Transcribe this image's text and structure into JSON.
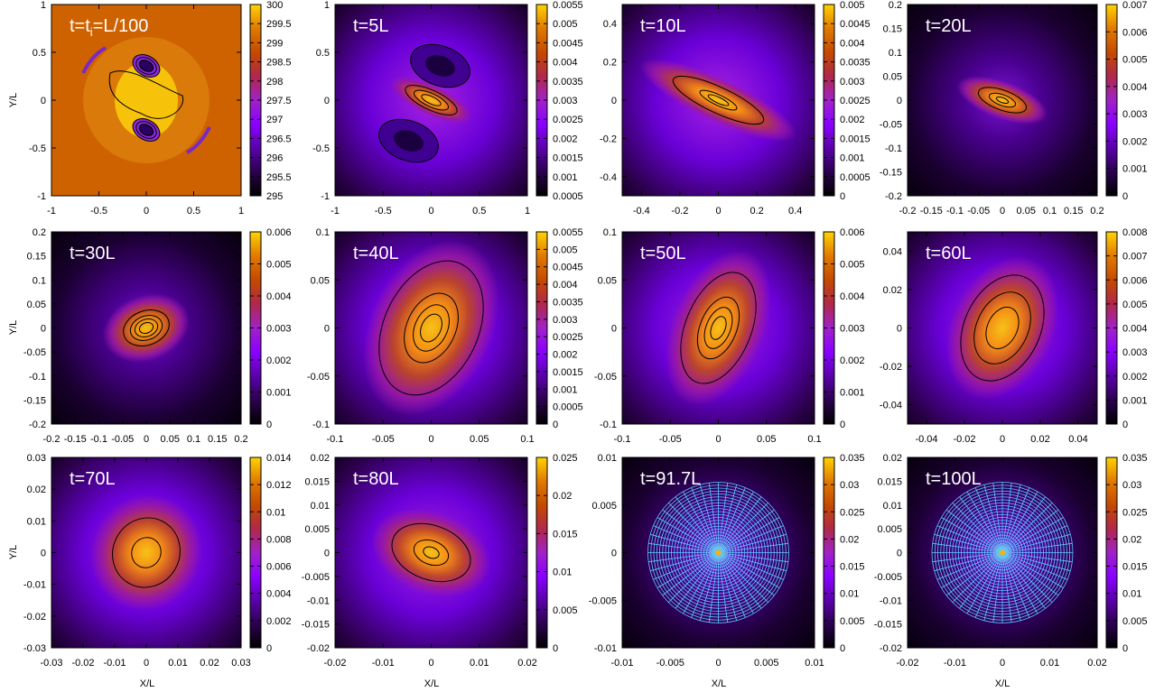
{
  "figure": {
    "x_axis_label": "X/L",
    "y_axis_label": "Y/L"
  },
  "colors": {
    "colormap": [
      "#000000",
      "#2b004f",
      "#5a00aa",
      "#8a00ff",
      "#a022c7",
      "#b0284a",
      "#c54a00",
      "#e07a00",
      "#ffd300"
    ],
    "contour": "#000000",
    "mesh": "#5ec8ff",
    "background_panel_1": "#cf6200",
    "label": "#ffffff"
  },
  "chart_data": [
    {
      "type": "heatmap",
      "title": "t=t_i=L/100",
      "title_main": "t=t",
      "title_sub": "i",
      "title_tail": "=L/100",
      "xlim": [
        -1,
        1
      ],
      "ylim": [
        -1,
        1
      ],
      "x_ticks": [
        "-1",
        "-0.5",
        "0",
        "0.5",
        "1"
      ],
      "y_ticks": [
        "1",
        "0.5",
        "0",
        "-0.5",
        "-1"
      ],
      "colorbar": {
        "min": 295,
        "max": 300,
        "ticks": [
          "300",
          "299.5",
          "299",
          "298.5",
          "298",
          "297.5",
          "297",
          "296.5",
          "296",
          "295.5",
          "295"
        ]
      },
      "mesh": false
    },
    {
      "type": "heatmap",
      "title": "t=5L",
      "xlim": [
        -1,
        1
      ],
      "ylim": [
        -1,
        1
      ],
      "x_ticks": [
        "-1",
        "-0.5",
        "0",
        "0.5",
        "1"
      ],
      "y_ticks": [
        "1",
        "0.5",
        "0",
        "-0.5",
        "-1"
      ],
      "colorbar": {
        "min": 0.0005,
        "max": 0.0055,
        "ticks": [
          "0.0055",
          "0.005",
          "0.0045",
          "0.004",
          "0.0035",
          "0.003",
          "0.0025",
          "0.002",
          "0.0015",
          "0.001",
          "0.0005"
        ]
      },
      "mesh": false
    },
    {
      "type": "heatmap",
      "title": "t=10L",
      "xlim": [
        -0.5,
        0.5
      ],
      "ylim": [
        -0.5,
        0.5
      ],
      "x_ticks": [
        "-0.4",
        "-0.2",
        "0",
        "0.2",
        "0.4"
      ],
      "y_ticks": [
        "0.4",
        "0.2",
        "0",
        "-0.2",
        "-0.4"
      ],
      "colorbar": {
        "min": 0,
        "max": 0.005,
        "ticks": [
          "0.005",
          "0.0045",
          "0.004",
          "0.0035",
          "0.003",
          "0.0025",
          "0.002",
          "0.0015",
          "0.001",
          "0.0005",
          "0"
        ]
      },
      "mesh": false
    },
    {
      "type": "heatmap",
      "title": "t=20L",
      "xlim": [
        -0.2,
        0.2
      ],
      "ylim": [
        -0.2,
        0.2
      ],
      "x_ticks": [
        "-0.2",
        "-0.15",
        "-0.1",
        "-0.05",
        "0",
        "0.05",
        "0.1",
        "0.15",
        "0.2"
      ],
      "y_ticks": [
        "0.2",
        "0.15",
        "0.1",
        "0.05",
        "0",
        "-0.05",
        "-0.1",
        "-0.15",
        "-0.2"
      ],
      "colorbar": {
        "min": 0,
        "max": 0.007,
        "ticks": [
          "0.007",
          "0.006",
          "0.005",
          "0.004",
          "0.003",
          "0.002",
          "0.001",
          "0"
        ]
      },
      "mesh": false
    },
    {
      "type": "heatmap",
      "title": "t=30L",
      "xlim": [
        -0.2,
        0.2
      ],
      "ylim": [
        -0.2,
        0.2
      ],
      "x_ticks": [
        "-0.2",
        "-0.15",
        "-0.1",
        "-0.05",
        "0",
        "0.05",
        "0.1",
        "0.15",
        "0.2"
      ],
      "y_ticks": [
        "0.2",
        "0.15",
        "0.1",
        "0.05",
        "0",
        "-0.05",
        "-0.1",
        "-0.15",
        "-0.2"
      ],
      "colorbar": {
        "min": 0,
        "max": 0.006,
        "ticks": [
          "0.006",
          "0.005",
          "0.004",
          "0.003",
          "0.002",
          "0.001",
          "0"
        ]
      },
      "mesh": false
    },
    {
      "type": "heatmap",
      "title": "t=40L",
      "xlim": [
        -0.1,
        0.1
      ],
      "ylim": [
        -0.1,
        0.1
      ],
      "x_ticks": [
        "-0.1",
        "-0.05",
        "0",
        "0.05",
        "0.1"
      ],
      "y_ticks": [
        "0.1",
        "0.05",
        "0",
        "-0.05",
        "-0.1"
      ],
      "colorbar": {
        "min": 0,
        "max": 0.0055,
        "ticks": [
          "0.0055",
          "0.005",
          "0.0045",
          "0.004",
          "0.0035",
          "0.003",
          "0.0025",
          "0.002",
          "0.0015",
          "0.001",
          "0.0005",
          "0"
        ]
      },
      "mesh": false
    },
    {
      "type": "heatmap",
      "title": "t=50L",
      "xlim": [
        -0.1,
        0.1
      ],
      "ylim": [
        -0.1,
        0.1
      ],
      "x_ticks": [
        "-0.1",
        "-0.05",
        "0",
        "0.05",
        "0.1"
      ],
      "y_ticks": [
        "0.1",
        "0.05",
        "0",
        "-0.05",
        "-0.1"
      ],
      "colorbar": {
        "min": 0,
        "max": 0.006,
        "ticks": [
          "0.006",
          "0.005",
          "0.004",
          "0.003",
          "0.002",
          "0.001",
          "0"
        ]
      },
      "mesh": false
    },
    {
      "type": "heatmap",
      "title": "t=60L",
      "xlim": [
        -0.05,
        0.05
      ],
      "ylim": [
        -0.05,
        0.05
      ],
      "x_ticks": [
        "-0.04",
        "-0.02",
        "0",
        "0.02",
        "0.04"
      ],
      "y_ticks": [
        "0.04",
        "0.02",
        "0",
        "-0.02",
        "-0.04"
      ],
      "colorbar": {
        "min": 0,
        "max": 0.008,
        "ticks": [
          "0.008",
          "0.007",
          "0.006",
          "0.005",
          "0.004",
          "0.003",
          "0.002",
          "0.001",
          "0"
        ]
      },
      "mesh": false
    },
    {
      "type": "heatmap",
      "title": "t=70L",
      "xlim": [
        -0.03,
        0.03
      ],
      "ylim": [
        -0.03,
        0.03
      ],
      "x_ticks": [
        "-0.03",
        "-0.02",
        "-0.01",
        "0",
        "0.01",
        "0.02",
        "0.03"
      ],
      "y_ticks": [
        "0.03",
        "0.02",
        "0.01",
        "0",
        "-0.01",
        "-0.02",
        "-0.03"
      ],
      "colorbar": {
        "min": 0,
        "max": 0.014,
        "ticks": [
          "0.014",
          "0.012",
          "0.01",
          "0.008",
          "0.006",
          "0.004",
          "0.002",
          "0"
        ]
      },
      "mesh": false
    },
    {
      "type": "heatmap",
      "title": "t=80L",
      "xlim": [
        -0.02,
        0.02
      ],
      "ylim": [
        -0.02,
        0.02
      ],
      "x_ticks": [
        "-0.02",
        "-0.01",
        "0",
        "0.01",
        "0.02"
      ],
      "y_ticks": [
        "0.02",
        "0.015",
        "0.01",
        "0.005",
        "0",
        "-0.005",
        "-0.01",
        "-0.015",
        "-0.02"
      ],
      "colorbar": {
        "min": 0,
        "max": 0.025,
        "ticks": [
          "0.025",
          "0.02",
          "0.015",
          "0.01",
          "0.005",
          "0"
        ]
      },
      "mesh": false
    },
    {
      "type": "heatmap",
      "title": "t=91.7L",
      "xlim": [
        -0.01,
        0.01
      ],
      "ylim": [
        -0.01,
        0.01
      ],
      "x_ticks": [
        "-0.01",
        "-0.005",
        "0",
        "0.005",
        "0.01"
      ],
      "y_ticks": [
        "0.01",
        "0.005",
        "0",
        "-0.005",
        "-0.01"
      ],
      "colorbar": {
        "min": 0,
        "max": 0.035,
        "ticks": [
          "0.035",
          "0.03",
          "0.025",
          "0.02",
          "0.015",
          "0.01",
          "0.005",
          "0"
        ]
      },
      "mesh": true
    },
    {
      "type": "heatmap",
      "title": "t=100L",
      "xlim": [
        -0.02,
        0.02
      ],
      "ylim": [
        -0.02,
        0.02
      ],
      "x_ticks": [
        "-0.02",
        "-0.01",
        "0",
        "0.01",
        "0.02"
      ],
      "y_ticks": [
        "0.02",
        "0.015",
        "0.01",
        "0.005",
        "0",
        "-0.005",
        "-0.01",
        "-0.015",
        "-0.02"
      ],
      "colorbar": {
        "min": 0,
        "max": 0.035,
        "ticks": [
          "0.035",
          "0.03",
          "0.025",
          "0.02",
          "0.015",
          "0.01",
          "0.005",
          "0"
        ]
      },
      "mesh": true
    }
  ]
}
